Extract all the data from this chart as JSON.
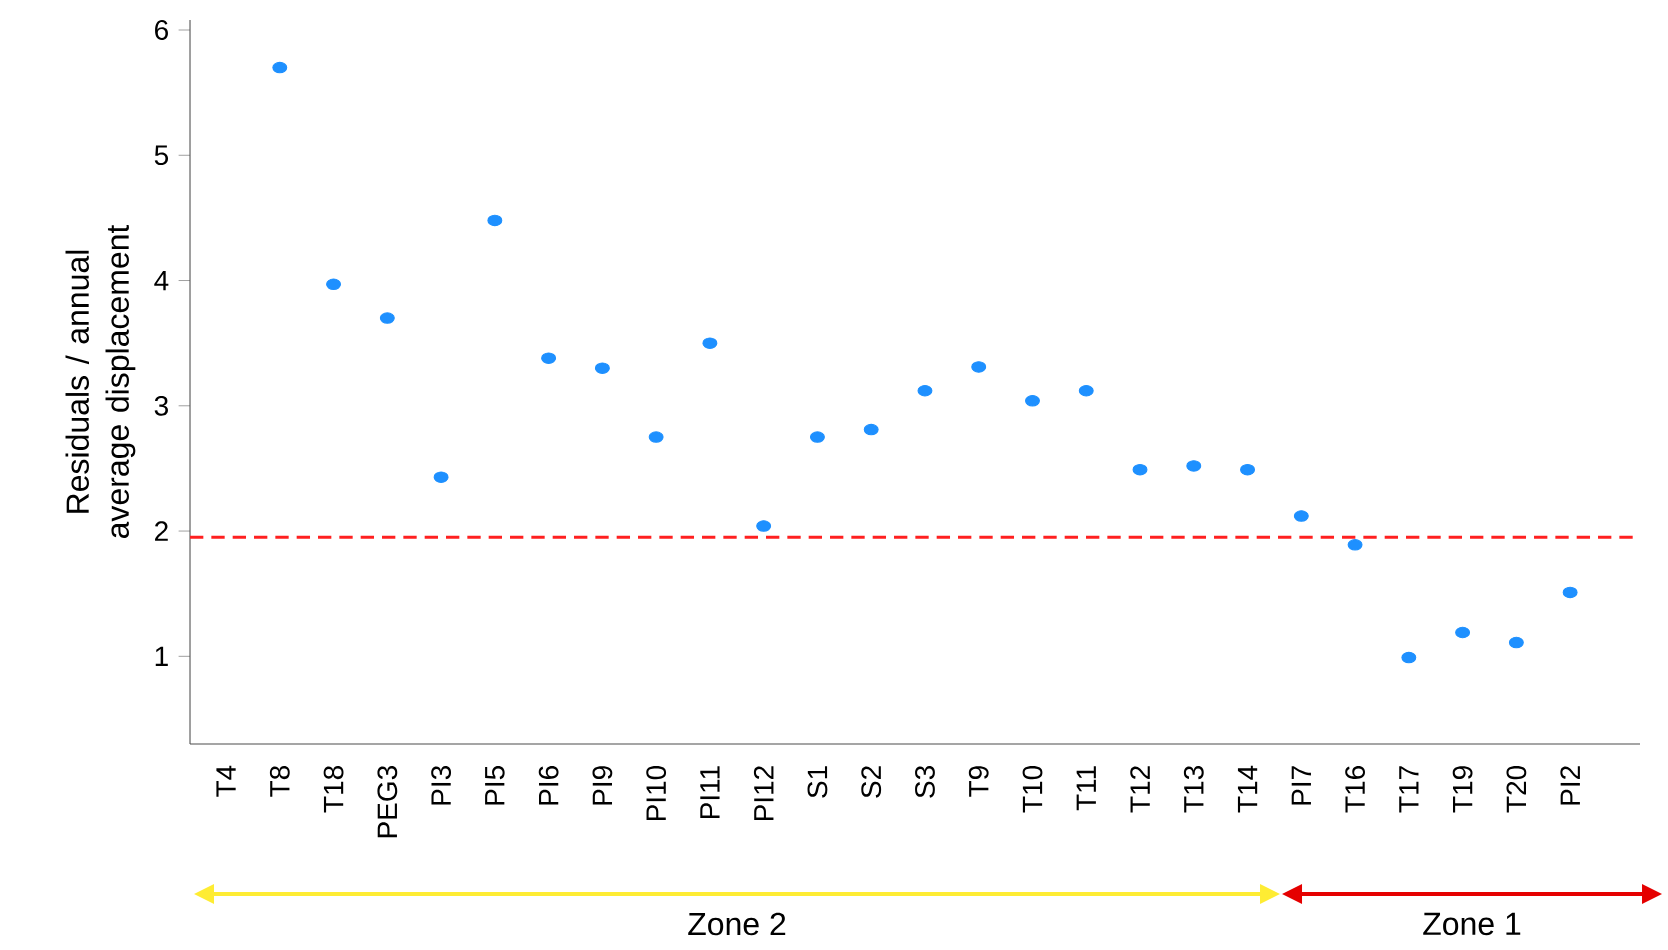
{
  "chart_data": {
    "type": "scatter",
    "ylabel": "Residuals / annual average displacement",
    "categories": [
      "T4",
      "T8",
      "T18",
      "PEG3",
      "PI3",
      "PI5",
      "PI6",
      "PI9",
      "PI10",
      "PI11",
      "PI12",
      "S1",
      "S2",
      "S3",
      "T9",
      "T10",
      "T11",
      "T12",
      "T13",
      "T14",
      "PI7",
      "T16",
      "T17",
      "T19",
      "T20",
      "PI2"
    ],
    "series": [
      {
        "color": "#1e90ff",
        "values": [
          null,
          5.7,
          3.97,
          3.7,
          2.43,
          4.48,
          3.38,
          3.3,
          2.75,
          3.5,
          2.04,
          2.75,
          2.81,
          3.12,
          3.31,
          3.04,
          3.12,
          2.49,
          2.52,
          2.49,
          2.12,
          1.89,
          0.99,
          1.19,
          1.11,
          1.51
        ]
      }
    ],
    "marker": "circle",
    "ylim": [
      0.3,
      6.08
    ],
    "yticks": [
      1,
      2,
      3,
      4,
      5,
      6
    ],
    "ref_lines": [
      {
        "axis": "y",
        "value": 1.95,
        "color": "#ff2020",
        "line_style": "dashed"
      }
    ],
    "annotations": [
      "Zone 2",
      "Zone 1"
    ]
  }
}
